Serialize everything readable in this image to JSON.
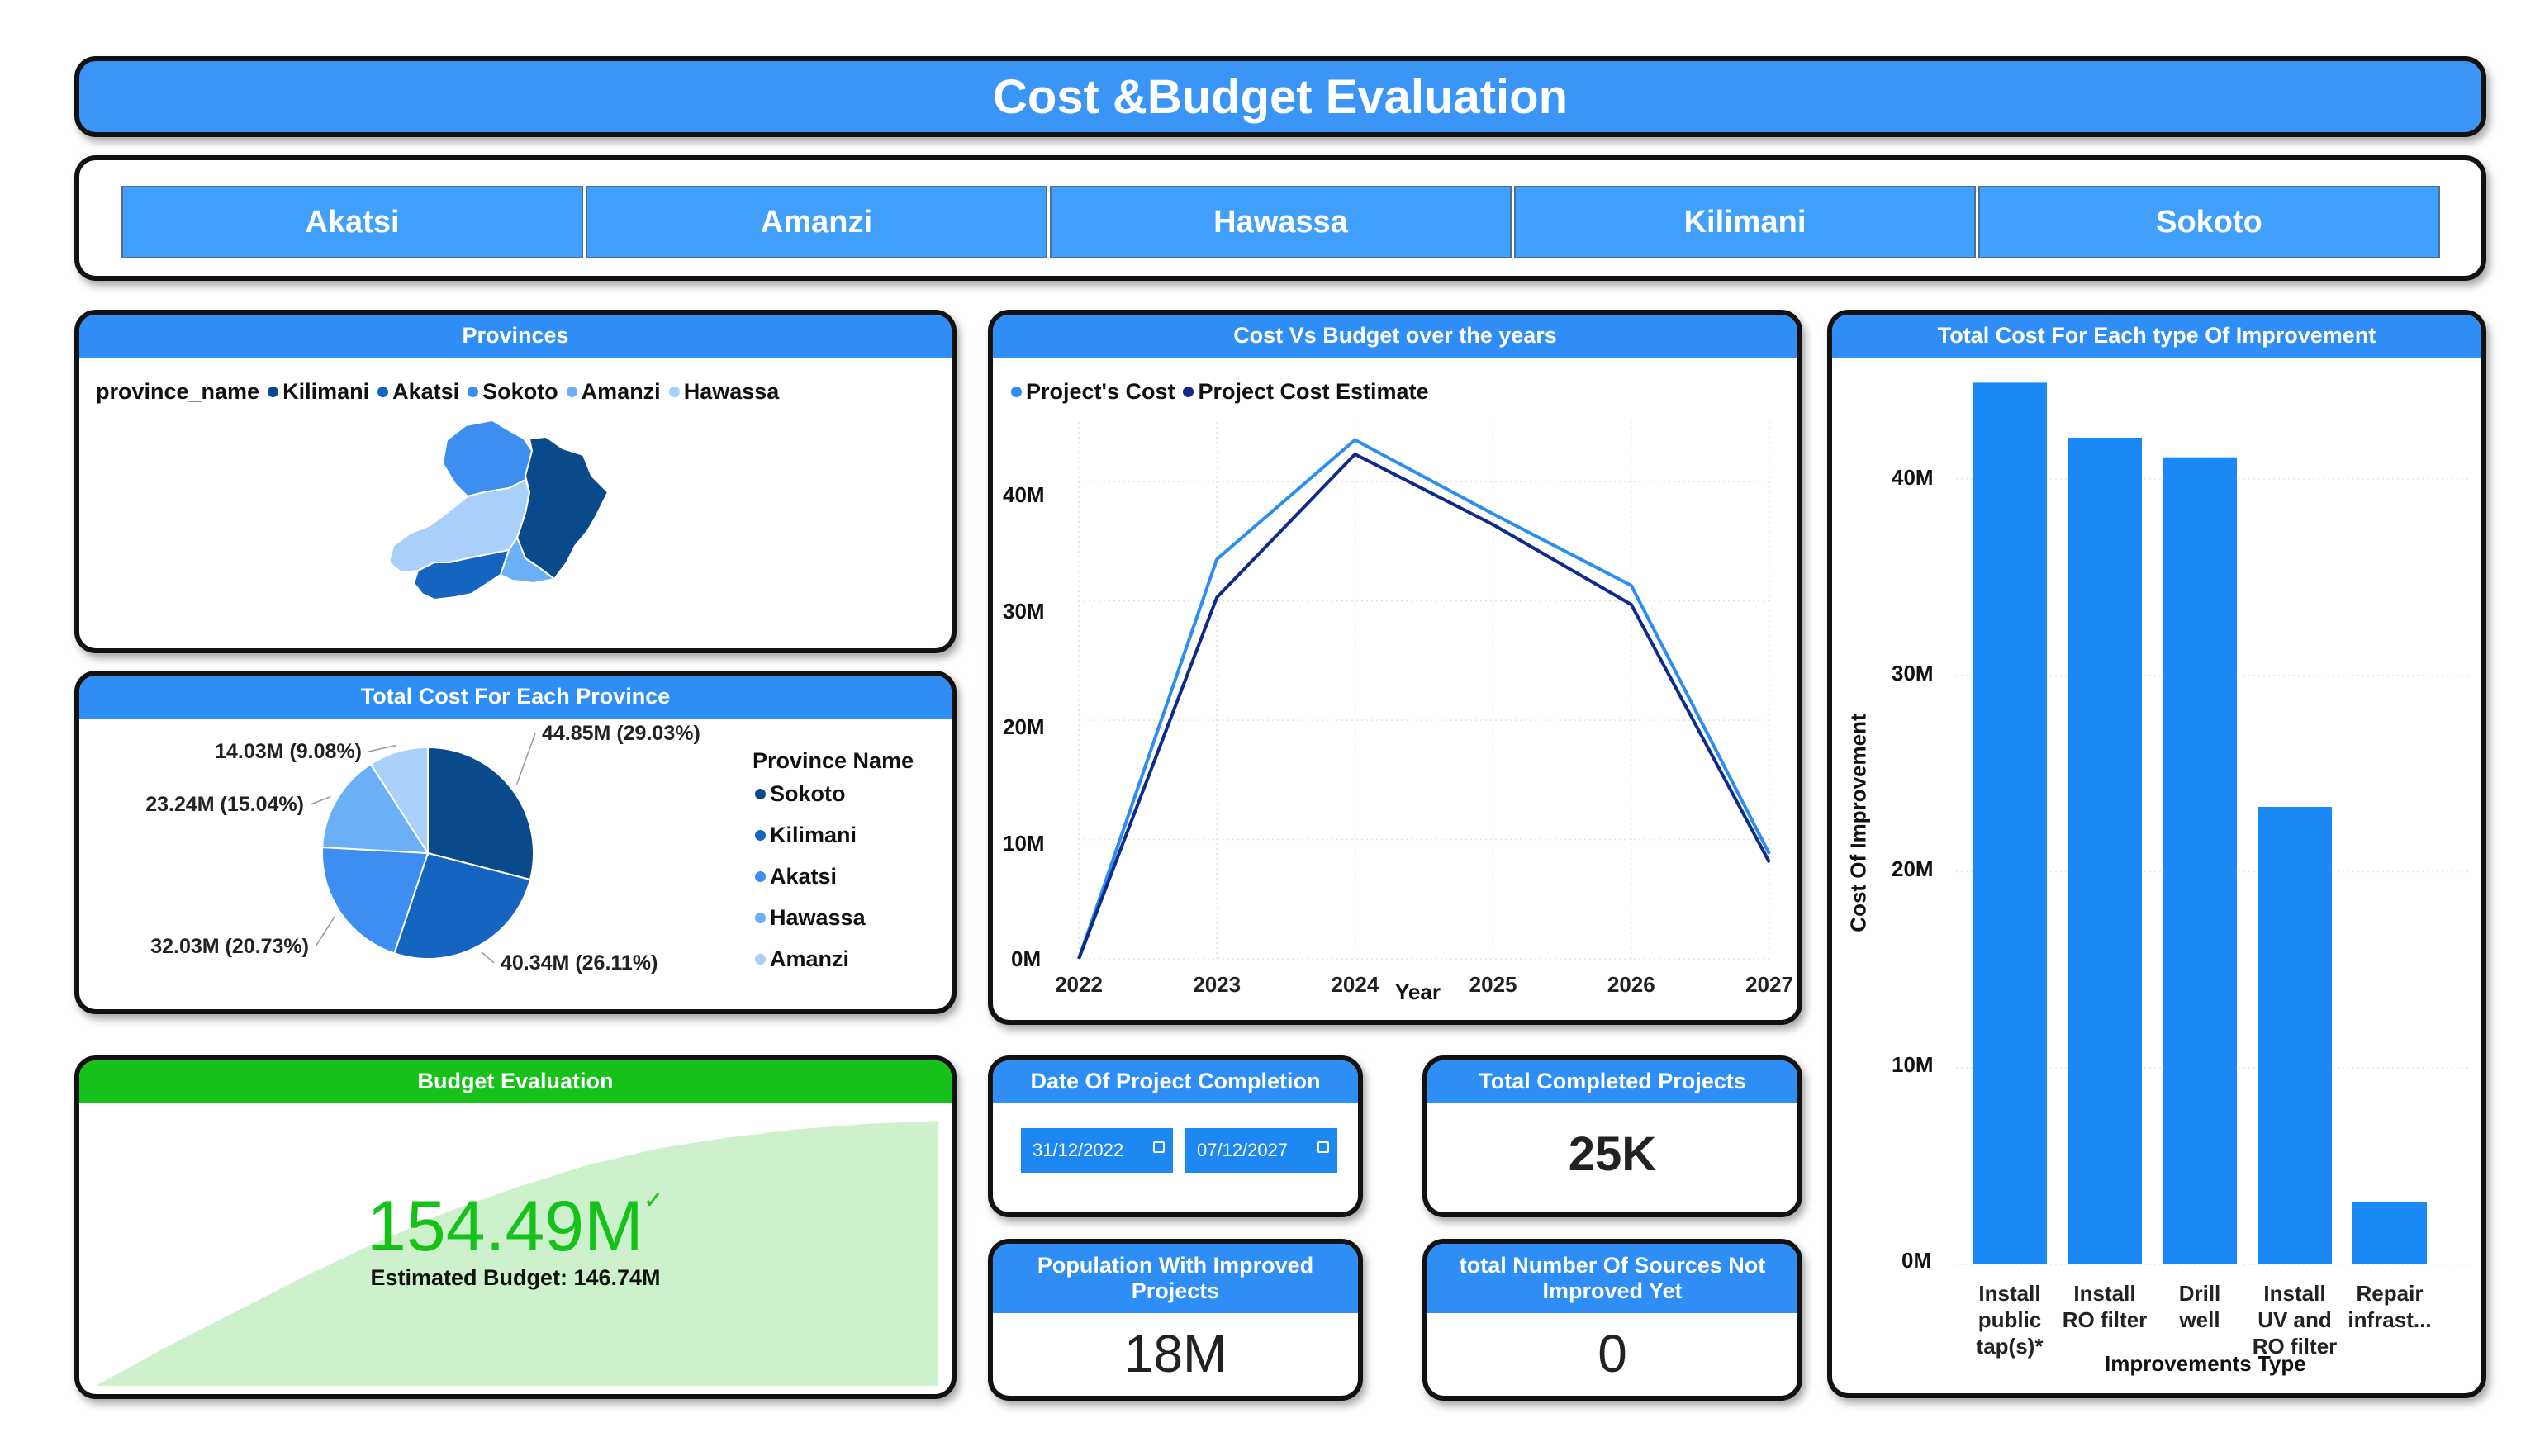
{
  "title": "Cost &Budget Evaluation",
  "slicer": [
    "Akatsi",
    "Amanzi",
    "Hawassa",
    "Kilimani",
    "Sokoto"
  ],
  "colors": {
    "accent": "#2e8ef5",
    "sokoto": "#0b4a8a",
    "kilimani": "#1565c0",
    "akatsi": "#3d8ef0",
    "hawassa": "#6bb0f7",
    "amanzi": "#a8d0fb",
    "cost_line": "#2a8ef0",
    "estimate_line": "#0e2a8a",
    "bar": "#1a88f5",
    "budget_green": "#16c21a"
  },
  "map": {
    "title": "Provinces",
    "legend_title": "province_name",
    "legend": [
      "Kilimani",
      "Akatsi",
      "Sokoto",
      "Amanzi",
      "Hawassa"
    ]
  },
  "pie": {
    "title": "Total Cost For Each Province",
    "legend_title": "Province Name",
    "legend": [
      "Sokoto",
      "Kilimani",
      "Akatsi",
      "Hawassa",
      "Amanzi"
    ]
  },
  "line": {
    "title": "Cost Vs Budget over the years",
    "legend": [
      "Project's Cost",
      "Project Cost Estimate"
    ],
    "xlabel": "Year",
    "yticks": [
      "0M",
      "10M",
      "20M",
      "30M",
      "40M"
    ]
  },
  "bar": {
    "title": "Total Cost For Each type Of Improvement",
    "xlabel": "Improvements Type",
    "ylabel": "Cost Of Improvement",
    "yticks": [
      "0M",
      "10M",
      "20M",
      "30M",
      "40M"
    ]
  },
  "budget": {
    "title": "Budget Evaluation",
    "value": "154.49M",
    "estimated": "Estimated Budget: 146.74M"
  },
  "date_card": {
    "title": "Date Of Project Completion",
    "start": "31/12/2022",
    "end": "07/12/2027"
  },
  "completed_card": {
    "title": "Total Completed Projects",
    "value": "25K"
  },
  "population_card": {
    "title": "Population With Improved Projects",
    "value": "18M"
  },
  "sources_card": {
    "title": "total Number Of Sources Not Improved Yet",
    "value": "0"
  },
  "chart_data": [
    {
      "type": "pie",
      "title": "Total Cost For Each Province",
      "legend_title": "Province Name",
      "slices": [
        {
          "name": "Sokoto",
          "value": 44.85,
          "label": "44.85M (29.03%)"
        },
        {
          "name": "Kilimani",
          "value": 40.34,
          "label": "40.34M (26.11%)"
        },
        {
          "name": "Akatsi",
          "value": 32.03,
          "label": "32.03M (20.73%)"
        },
        {
          "name": "Hawassa",
          "value": 23.24,
          "label": "23.24M (15.04%)"
        },
        {
          "name": "Amanzi",
          "value": 14.03,
          "label": "14.03M (9.08%)"
        }
      ]
    },
    {
      "type": "line",
      "title": "Cost Vs Budget over the years",
      "xlabel": "Year",
      "x": [
        2022,
        2023,
        2024,
        2025,
        2026,
        2027
      ],
      "ylim": [
        0,
        45
      ],
      "series": [
        {
          "name": "Project's Cost",
          "values": [
            0,
            33.5,
            43.5,
            37.3,
            31.3,
            8.8
          ]
        },
        {
          "name": "Project Cost Estimate",
          "values": [
            0,
            30.3,
            42.3,
            36.4,
            29.7,
            8.1
          ]
        }
      ],
      "grid": true,
      "legend": "top-left"
    },
    {
      "type": "bar",
      "title": "Total Cost For Each type Of Improvement",
      "xlabel": "Improvements Type",
      "ylabel": "Cost Of Improvement",
      "categories": [
        "Install public tap(s)*",
        "Install RO filter",
        "Drill well",
        "Install UV and RO filter",
        "Repair infrast..."
      ],
      "category_lines": [
        [
          "Install",
          "public",
          "tap(s)*"
        ],
        [
          "Install",
          "RO filter"
        ],
        [
          "Drill",
          "well"
        ],
        [
          "Install",
          "UV and",
          "RO filter"
        ],
        [
          "Repair",
          "infrast..."
        ]
      ],
      "values": [
        44.9,
        42.1,
        41.1,
        23.3,
        3.2
      ],
      "ylim": [
        0,
        45
      ]
    },
    {
      "type": "area",
      "title": "Budget Evaluation",
      "values": [
        0,
        14,
        27,
        40,
        52,
        63,
        72,
        80,
        86,
        90,
        93,
        95,
        96
      ]
    }
  ]
}
